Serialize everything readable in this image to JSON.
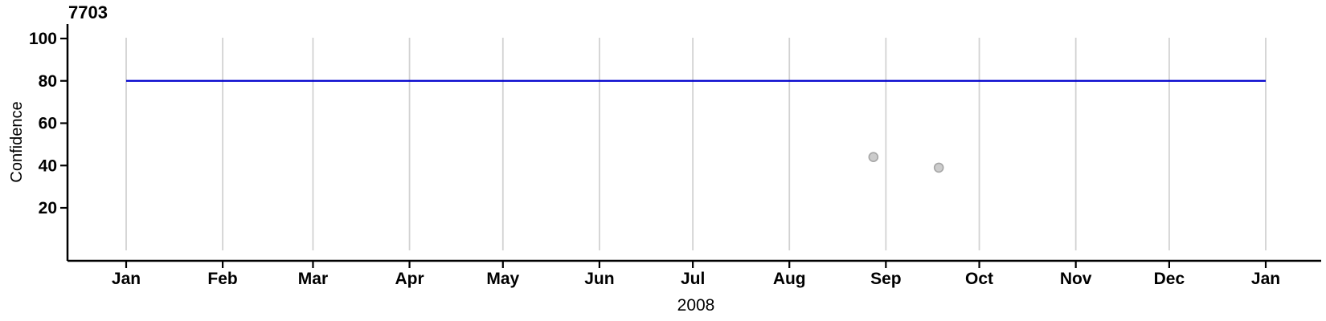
{
  "background_color": "#FFFFFF",
  "chart_data": {
    "type": "scatter",
    "title": "7703",
    "ylabel": "Confidence",
    "xlabel": "2008",
    "ylim": [
      0,
      100
    ],
    "y_ticks": [
      20,
      40,
      60,
      80,
      100
    ],
    "x_tick_labels": [
      "Jan",
      "Feb",
      "Mar",
      "Apr",
      "May",
      "Jun",
      "Jul",
      "Aug",
      "Sep",
      "Oct",
      "Nov",
      "Dec",
      "Jan"
    ],
    "x_tick_days": [
      0,
      31,
      60,
      91,
      121,
      152,
      182,
      213,
      244,
      274,
      305,
      335,
      366
    ],
    "x_range_days": [
      0,
      366
    ],
    "grid": "vertical gridlines at each month start, no horizontal gridlines",
    "legend": "none",
    "reference_line": {
      "value": 80,
      "span_days": [
        0,
        366
      ],
      "color": "#0000CD"
    },
    "points": [
      {
        "day_of_year": 240,
        "value": 44
      },
      {
        "day_of_year": 261,
        "value": 39
      }
    ],
    "styles": {
      "grid_color": "#D2D2D2",
      "axis_color": "#000000",
      "tick_label_color": "#000000",
      "point_fill": "#CCCCCC",
      "point_stroke": "#A6A6A6"
    }
  }
}
